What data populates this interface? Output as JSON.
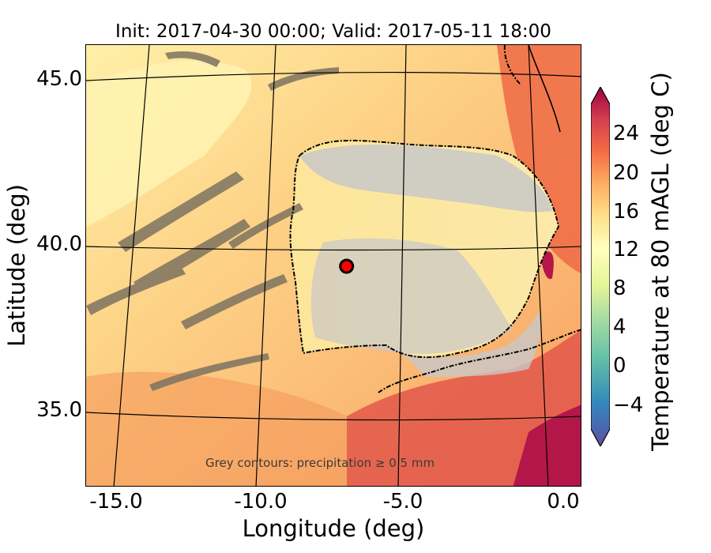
{
  "figure": {
    "title": "Init: 2017-04-30 00:00; Valid: 2017-05-11 18:00",
    "xlabel": "Longitude (deg)",
    "ylabel": "Latitude (deg)",
    "x_ticks": [
      "-15.0",
      "-10.0",
      "-5.0",
      "0.0"
    ],
    "y_ticks": [
      "45.0",
      "40.0",
      "35.0"
    ],
    "annotation": "Grey contours: precipitation ≥ 0.5 mm"
  },
  "colorbar": {
    "label": "Temperature at 80 mAGL (deg C)",
    "ticks": [
      "24",
      "20",
      "16",
      "12",
      "8",
      "4",
      "0",
      "−4"
    ],
    "tick_values": [
      24,
      20,
      16,
      12,
      8,
      4,
      0,
      -4
    ],
    "range": [
      -8,
      28
    ],
    "colors": [
      "#5e4fa2",
      "#3288bd",
      "#66c2a5",
      "#abdda4",
      "#e6f598",
      "#ffffbf",
      "#fee08b",
      "#fdae61",
      "#f46d43",
      "#d53e4f",
      "#9e0142"
    ]
  },
  "map": {
    "lon_range": [
      -16.0,
      0.0
    ],
    "lat_range": [
      32.7,
      46.0
    ],
    "marker": {
      "lon": -7.6,
      "lat": 39.35,
      "color": "#ff0000"
    }
  }
}
